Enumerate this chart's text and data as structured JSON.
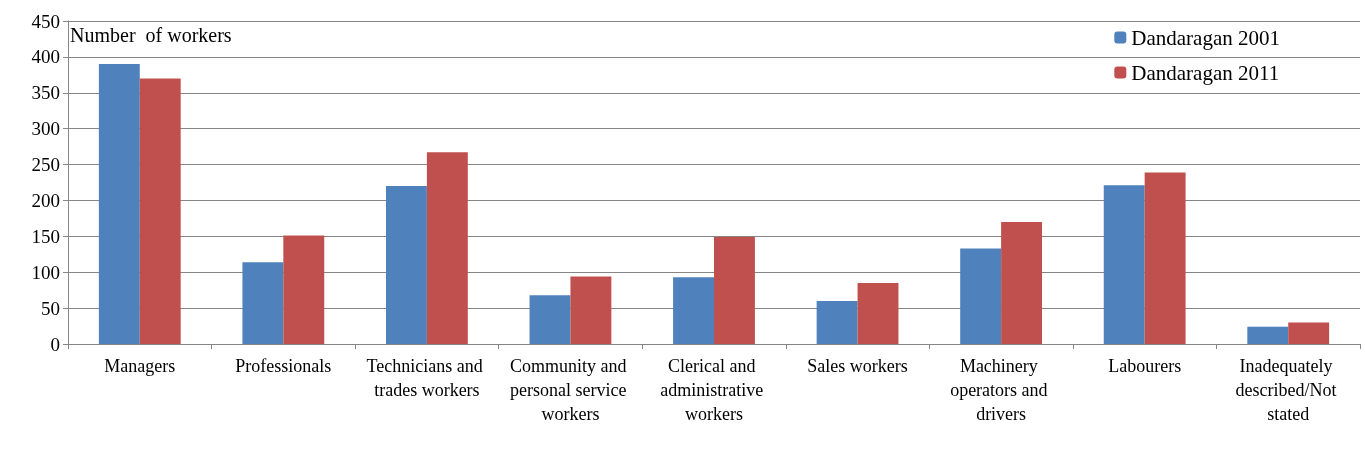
{
  "chart_data": {
    "type": "bar",
    "ylabel": "Number  of workers",
    "categories": [
      "Managers",
      "Professionals",
      "Technicians and trades workers",
      "Community and personal service workers",
      "Clerical and administrative workers",
      "Sales workers",
      "Machinery operators and drivers",
      "Labourers",
      "Inadequately described/Not stated"
    ],
    "series": [
      {
        "name": "Dandaragan 2001",
        "color": "#4f81bd",
        "values": [
          390,
          114,
          220,
          68,
          93,
          60,
          133,
          221,
          24
        ]
      },
      {
        "name": "Dandaragan 2011",
        "color": "#c0504d",
        "values": [
          370,
          151,
          267,
          94,
          149,
          85,
          170,
          239,
          30
        ]
      }
    ],
    "ylim": [
      0,
      450
    ],
    "yticks": [
      0,
      50,
      100,
      150,
      200,
      250,
      300,
      350,
      400,
      450
    ],
    "grid": true,
    "legend": "top right"
  }
}
